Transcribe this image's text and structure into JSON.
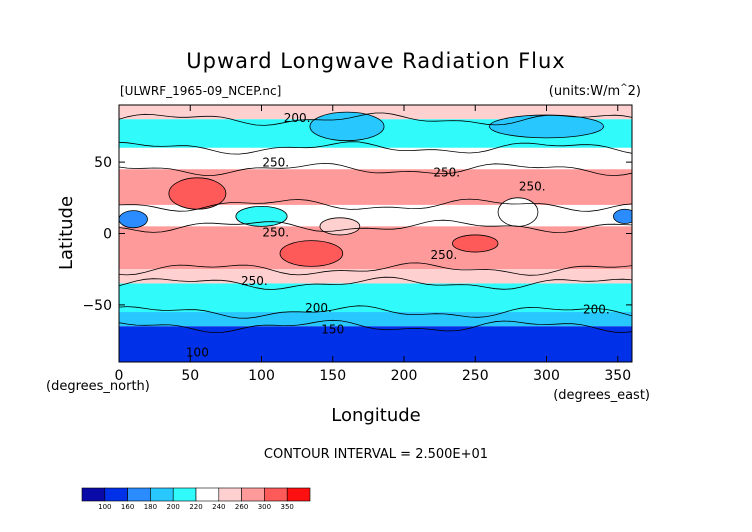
{
  "chart_data": {
    "type": "heatmap",
    "title": "Upward Longwave Radiation Flux",
    "file_label": "[ULWRF_1965-09_NCEP.nc]",
    "units_label": "(units:W/m^2)",
    "xlabel": "Longitude",
    "x_unit_label": "(degrees_east)",
    "ylabel": "Latitude",
    "y_unit_label": "(degrees_north)",
    "xlim": [
      0,
      360
    ],
    "ylim": [
      -90,
      90
    ],
    "x_ticks": [
      "0",
      "50",
      "100",
      "150",
      "200",
      "250",
      "300",
      "350"
    ],
    "x_tick_values": [
      0,
      50,
      100,
      150,
      200,
      250,
      300,
      350
    ],
    "y_ticks": [
      "50",
      "0",
      "-50"
    ],
    "y_tick_values": [
      50,
      0,
      -50
    ],
    "contour_interval_text": "CONTOUR INTERVAL = 2.500E+01",
    "contour_labels": [
      {
        "text": "200.",
        "lon": 125,
        "lat": 78
      },
      {
        "text": "250.",
        "lon": 230,
        "lat": 40
      },
      {
        "text": "250.",
        "lon": 290,
        "lat": 30
      },
      {
        "text": "250.",
        "lon": 110,
        "lat": 47
      },
      {
        "text": "250.",
        "lon": 110,
        "lat": -2
      },
      {
        "text": "250.",
        "lon": 228,
        "lat": -18
      },
      {
        "text": "250.",
        "lon": 95,
        "lat": -36
      },
      {
        "text": "200.",
        "lon": 140,
        "lat": -55
      },
      {
        "text": "200.",
        "lon": 335,
        "lat": -56
      },
      {
        "text": "150",
        "lon": 150,
        "lat": -70
      },
      {
        "text": "100",
        "lon": 55,
        "lat": -86
      }
    ],
    "colorbar": {
      "levels": [
        "100",
        "160",
        "180",
        "200",
        "220",
        "240",
        "260",
        "300",
        "350"
      ],
      "colors": [
        "#0a0aa8",
        "#0030e8",
        "#2a8cff",
        "#28c8ff",
        "#30fafa",
        "#ffffff",
        "#ffd0d0",
        "#ff9a9a",
        "#ff5a5a",
        "#ff1010"
      ]
    },
    "bands": [
      {
        "lat_from": 90,
        "lat_to": 80,
        "level": 240
      },
      {
        "lat_from": 80,
        "lat_to": 60,
        "level": 210
      },
      {
        "lat_from": 60,
        "lat_to": 45,
        "level": 235
      },
      {
        "lat_from": 45,
        "lat_to": 20,
        "level": 265
      },
      {
        "lat_from": 20,
        "lat_to": 5,
        "level": 230
      },
      {
        "lat_from": 5,
        "lat_to": -25,
        "level": 265
      },
      {
        "lat_from": -25,
        "lat_to": -35,
        "level": 245
      },
      {
        "lat_from": -35,
        "lat_to": -55,
        "level": 215
      },
      {
        "lat_from": -55,
        "lat_to": -65,
        "level": 190
      },
      {
        "lat_from": -65,
        "lat_to": -90,
        "level": 150
      }
    ],
    "features": [
      {
        "lon": 55,
        "lat": 28,
        "rx": 20,
        "ry": 11,
        "level": 305
      },
      {
        "lon": 135,
        "lat": -14,
        "rx": 22,
        "ry": 9,
        "level": 305
      },
      {
        "lon": 250,
        "lat": -7,
        "rx": 16,
        "ry": 6,
        "level": 305
      },
      {
        "lon": 160,
        "lat": 75,
        "rx": 26,
        "ry": 10,
        "level": 190
      },
      {
        "lon": 300,
        "lat": 75,
        "rx": 40,
        "ry": 8,
        "level": 190
      },
      {
        "lon": 100,
        "lat": 12,
        "rx": 18,
        "ry": 7,
        "level": 200
      },
      {
        "lon": 10,
        "lat": 10,
        "rx": 10,
        "ry": 6,
        "level": 170
      },
      {
        "lon": 355,
        "lat": 12,
        "rx": 8,
        "ry": 5,
        "level": 170
      },
      {
        "lon": 155,
        "lat": 5,
        "rx": 14,
        "ry": 6,
        "level": 240
      },
      {
        "lon": 280,
        "lat": 15,
        "rx": 14,
        "ry": 10,
        "level": 225
      }
    ]
  }
}
